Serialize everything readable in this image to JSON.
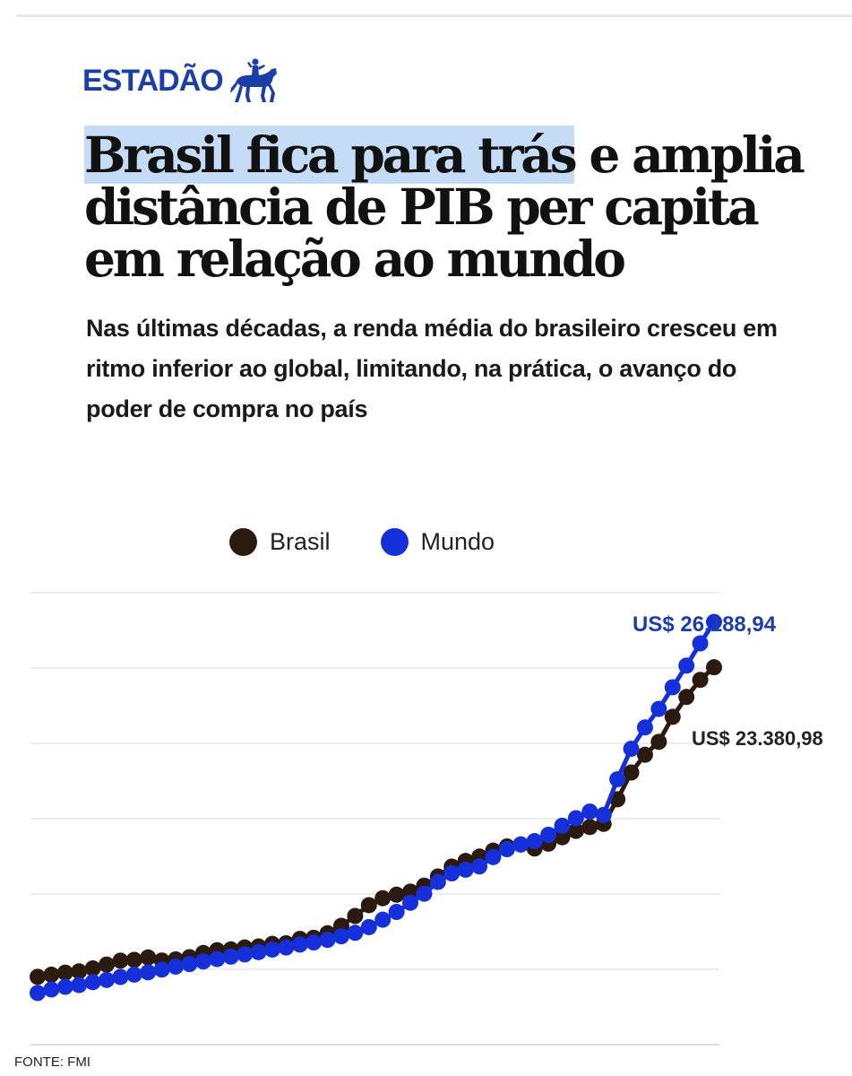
{
  "logo": {
    "text": "ESTADÃO",
    "icon": "horse-rider-icon"
  },
  "headline": {
    "highlight": "Brasil fica para trás",
    "rest": " e amplia distância de PIB per capita em relação ao mundo"
  },
  "subtitle": "Nas últimas décadas, a renda média do brasileiro cresceu em ritmo inferior ao global, limitando, na prática, o avanço do poder de compra no país",
  "source": "FONTE: FMI",
  "colors": {
    "brasil": "#2b1a0f",
    "mundo": "#1530d8",
    "accent": "#1b3fa6",
    "highlight": "#c5dcf7",
    "grid": "#d9d9d9"
  },
  "chart_data": {
    "type": "line",
    "title": "",
    "xlabel": "",
    "ylabel": "",
    "ylim": [
      0,
      28000
    ],
    "grid": true,
    "legend": "top-center",
    "series": [
      {
        "name": "Brasil",
        "color": "#2b1a0f",
        "values": [
          4200,
          4330,
          4460,
          4540,
          4720,
          4960,
          5200,
          5250,
          5400,
          5210,
          5280,
          5420,
          5680,
          5850,
          5900,
          6020,
          6080,
          6240,
          6280,
          6550,
          6620,
          6900,
          7360,
          7970,
          8640,
          9070,
          9290,
          9480,
          9850,
          10420,
          11030,
          11380,
          11650,
          12020,
          12280,
          12400,
          12150,
          12450,
          12850,
          13240,
          13480,
          13680,
          15200,
          16860,
          17960,
          18760,
          20310,
          21540,
          22600,
          23380.98
        ],
        "end_label": "US$ 23.380,98"
      },
      {
        "name": "Mundo",
        "color": "#1530d8",
        "values": [
          3200,
          3420,
          3580,
          3690,
          3870,
          4010,
          4190,
          4340,
          4480,
          4650,
          4830,
          4990,
          5150,
          5300,
          5450,
          5590,
          5730,
          5890,
          6020,
          6200,
          6330,
          6490,
          6710,
          6930,
          7280,
          7740,
          8220,
          8790,
          9350,
          10080,
          10610,
          10840,
          11040,
          11620,
          12110,
          12400,
          12610,
          13000,
          13560,
          14030,
          14440,
          14230,
          16440,
          18330,
          19650,
          20800,
          22140,
          23480,
          24860,
          26188.94
        ],
        "end_label": "US$ 26.188,94"
      }
    ]
  }
}
